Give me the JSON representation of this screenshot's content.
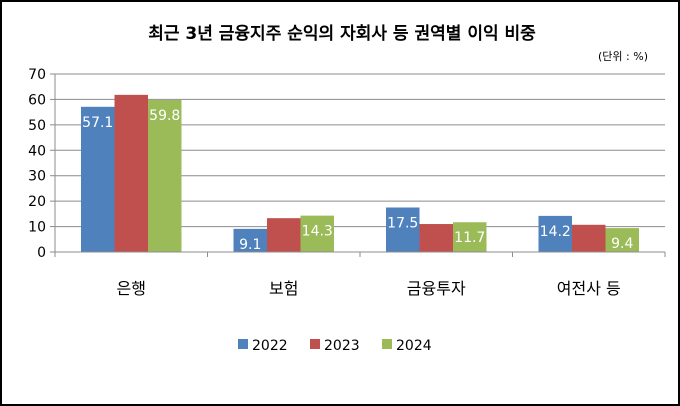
{
  "chart_data": {
    "type": "bar",
    "title": "최근 3년 금융지주 순익의 자회사 등 권역별 이익 비중",
    "unit_note": "(단위 : %)",
    "xlabel": "",
    "ylabel": "",
    "ylim": [
      0,
      70
    ],
    "yticks": [
      0,
      10,
      20,
      30,
      40,
      50,
      60,
      70
    ],
    "grid": true,
    "legend_position": "bottom",
    "categories": [
      "은행",
      "보험",
      "금융투자",
      "여전사 등"
    ],
    "series": [
      {
        "name": "2022",
        "color": "#4F81BD",
        "values": [
          57.1,
          9.1,
          17.5,
          14.2
        ],
        "labels": [
          "57.1",
          "9.1",
          "17.5",
          "14.2"
        ]
      },
      {
        "name": "2023",
        "color": "#C0504D",
        "values": [
          61.8,
          13.3,
          11.0,
          10.7
        ],
        "labels": [
          "",
          "",
          "",
          ""
        ]
      },
      {
        "name": "2024",
        "color": "#9BBB59",
        "values": [
          59.8,
          14.3,
          11.7,
          9.4
        ],
        "labels": [
          "59.8",
          "14.3",
          "11.7",
          "9.4"
        ]
      }
    ]
  }
}
